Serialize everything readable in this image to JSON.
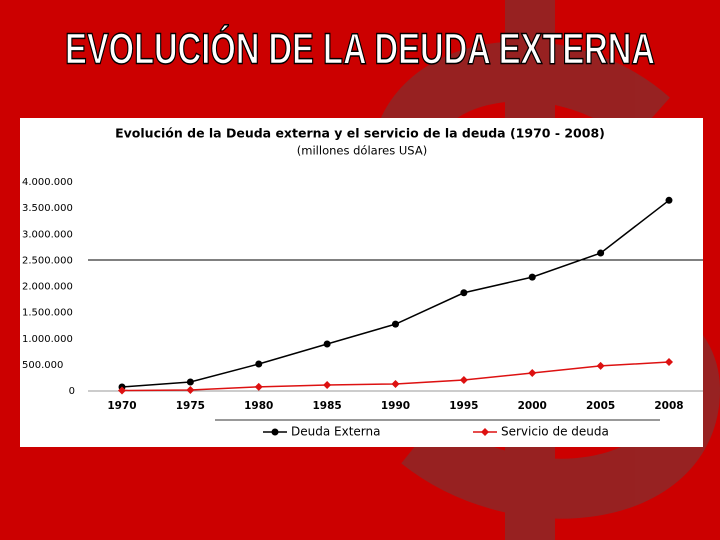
{
  "slide_title": "EVOLUCIÓN DE LA DEUDA EXTERNA",
  "chart_data": {
    "type": "line",
    "title": "Evolución de la Deuda externa y el servicio de la deuda (1970 - 2008)",
    "subtitle": "(millones dólares USA)",
    "categories": [
      "1970",
      "1975",
      "1980",
      "1985",
      "1990",
      "1995",
      "2000",
      "2005",
      "2008"
    ],
    "series": [
      {
        "name": "Deuda Externa",
        "color": "#000000",
        "marker": "circle",
        "values": [
          77000,
          172000,
          517000,
          900000,
          1280000,
          1880000,
          2180000,
          2640000,
          3650000
        ]
      },
      {
        "name": "Servicio de deuda",
        "color": "#dd1111",
        "marker": "diamond",
        "values": [
          10000,
          20000,
          80000,
          115000,
          135000,
          210000,
          345000,
          480000,
          555000
        ]
      }
    ],
    "ylim": [
      0,
      4000000
    ],
    "yticks": [
      0,
      {
        "value": 500000,
        "label": "500.000"
      },
      {
        "value": 1000000,
        "label": "1.000.000"
      },
      {
        "value": 1500000,
        "label": "1.500.000"
      },
      {
        "value": 2000000,
        "label": "2.000.000"
      },
      {
        "value": 2500000,
        "label": "2.500.000"
      },
      {
        "value": 3000000,
        "label": "3.000.000"
      },
      {
        "value": 3500000,
        "label": "3.500.000"
      },
      {
        "value": 4000000,
        "label": "4.000.000"
      }
    ],
    "legend": "bottom"
  }
}
